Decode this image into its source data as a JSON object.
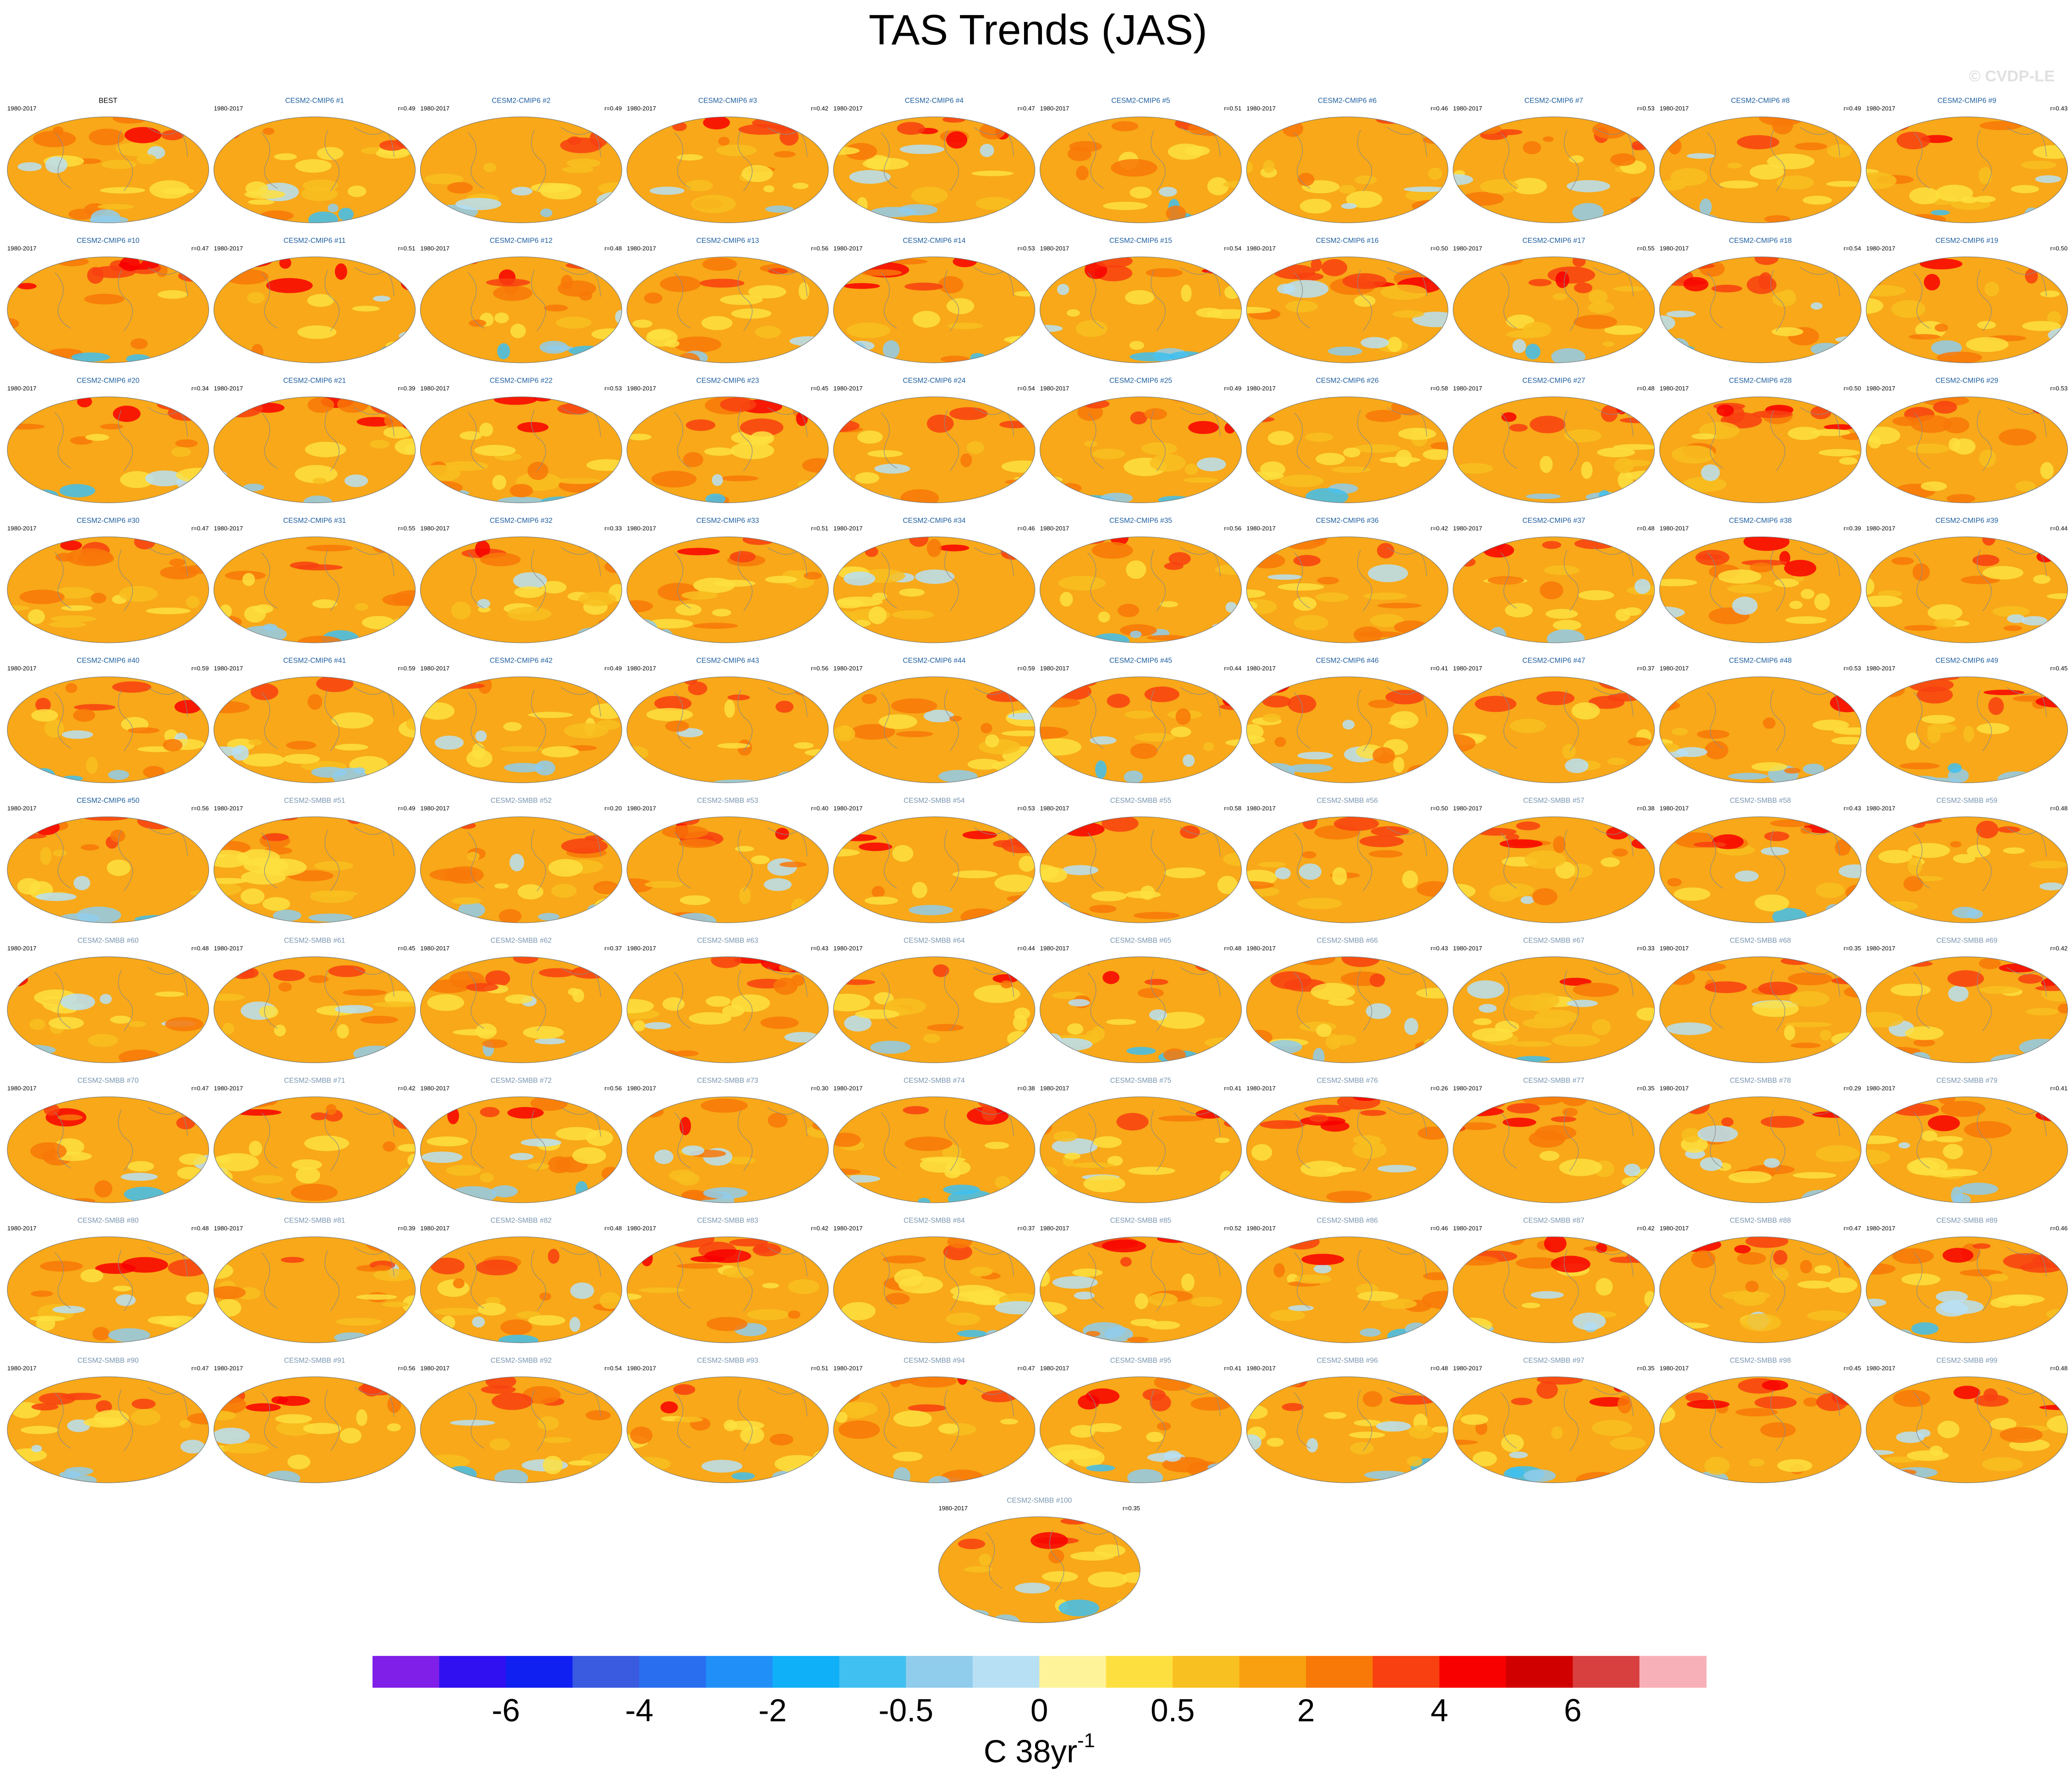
{
  "header": {
    "title": "TAS Trends (JAS)",
    "watermark": "© CVDP-LE"
  },
  "panels": [
    {
      "period": "1980-2017",
      "name": "BEST",
      "color": "#000000"
    },
    {
      "period": "1980-2017",
      "name": "CESM2-CMIP6 #1",
      "r": "r=0.49",
      "color": "#1f5fa0"
    },
    {
      "period": "1980-2017",
      "name": "CESM2-CMIP6 #2",
      "r": "r=0.49",
      "color": "#1f5fa0"
    },
    {
      "period": "1980-2017",
      "name": "CESM2-CMIP6 #3",
      "r": "r=0.42",
      "color": "#1f5fa0"
    },
    {
      "period": "1980-2017",
      "name": "CESM2-CMIP6 #4",
      "r": "r=0.47",
      "color": "#1f5fa0"
    },
    {
      "period": "1980-2017",
      "name": "CESM2-CMIP6 #5",
      "r": "r=0.51",
      "color": "#1f5fa0"
    },
    {
      "period": "1980-2017",
      "name": "CESM2-CMIP6 #6",
      "r": "r=0.46",
      "color": "#1f5fa0"
    },
    {
      "period": "1980-2017",
      "name": "CESM2-CMIP6 #7",
      "r": "r=0.53",
      "color": "#1f5fa0"
    },
    {
      "period": "1980-2017",
      "name": "CESM2-CMIP6 #8",
      "r": "r=0.49",
      "color": "#1f5fa0"
    },
    {
      "period": "1980-2017",
      "name": "CESM2-CMIP6 #9",
      "r": "r=0.43",
      "color": "#1f5fa0"
    },
    {
      "period": "1980-2017",
      "name": "CESM2-CMIP6 #10",
      "r": "r=0.47",
      "color": "#1f5fa0"
    },
    {
      "period": "1980-2017",
      "name": "CESM2-CMIP6 #11",
      "r": "r=0.51",
      "color": "#1f5fa0"
    },
    {
      "period": "1980-2017",
      "name": "CESM2-CMIP6 #12",
      "r": "r=0.48",
      "color": "#1f5fa0"
    },
    {
      "period": "1980-2017",
      "name": "CESM2-CMIP6 #13",
      "r": "r=0.56",
      "color": "#1f5fa0"
    },
    {
      "period": "1980-2017",
      "name": "CESM2-CMIP6 #14",
      "r": "r=0.53",
      "color": "#1f5fa0"
    },
    {
      "period": "1980-2017",
      "name": "CESM2-CMIP6 #15",
      "r": "r=0.54",
      "color": "#1f5fa0"
    },
    {
      "period": "1980-2017",
      "name": "CESM2-CMIP6 #16",
      "r": "r=0.50",
      "color": "#1f5fa0"
    },
    {
      "period": "1980-2017",
      "name": "CESM2-CMIP6 #17",
      "r": "r=0.55",
      "color": "#1f5fa0"
    },
    {
      "period": "1980-2017",
      "name": "CESM2-CMIP6 #18",
      "r": "r=0.54",
      "color": "#1f5fa0"
    },
    {
      "period": "1980-2017",
      "name": "CESM2-CMIP6 #19",
      "r": "r=0.50",
      "color": "#1f5fa0"
    },
    {
      "period": "1980-2017",
      "name": "CESM2-CMIP6 #20",
      "r": "r=0.34",
      "color": "#1f5fa0"
    },
    {
      "period": "1980-2017",
      "name": "CESM2-CMIP6 #21",
      "r": "r=0.39",
      "color": "#1f5fa0"
    },
    {
      "period": "1980-2017",
      "name": "CESM2-CMIP6 #22",
      "r": "r=0.53",
      "color": "#1f5fa0"
    },
    {
      "period": "1980-2017",
      "name": "CESM2-CMIP6 #23",
      "r": "r=0.45",
      "color": "#1f5fa0"
    },
    {
      "period": "1980-2017",
      "name": "CESM2-CMIP6 #24",
      "r": "r=0.54",
      "color": "#1f5fa0"
    },
    {
      "period": "1980-2017",
      "name": "CESM2-CMIP6 #25",
      "r": "r=0.49",
      "color": "#1f5fa0"
    },
    {
      "period": "1980-2017",
      "name": "CESM2-CMIP6 #26",
      "r": "r=0.58",
      "color": "#1f5fa0"
    },
    {
      "period": "1980-2017",
      "name": "CESM2-CMIP6 #27",
      "r": "r=0.48",
      "color": "#1f5fa0"
    },
    {
      "period": "1980-2017",
      "name": "CESM2-CMIP6 #28",
      "r": "r=0.50",
      "color": "#1f5fa0"
    },
    {
      "period": "1980-2017",
      "name": "CESM2-CMIP6 #29",
      "r": "r=0.53",
      "color": "#1f5fa0"
    },
    {
      "period": "1980-2017",
      "name": "CESM2-CMIP6 #30",
      "r": "r=0.47",
      "color": "#1f5fa0"
    },
    {
      "period": "1980-2017",
      "name": "CESM2-CMIP6 #31",
      "r": "r=0.55",
      "color": "#1f5fa0"
    },
    {
      "period": "1980-2017",
      "name": "CESM2-CMIP6 #32",
      "r": "r=0.33",
      "color": "#1f5fa0"
    },
    {
      "period": "1980-2017",
      "name": "CESM2-CMIP6 #33",
      "r": "r=0.51",
      "color": "#1f5fa0"
    },
    {
      "period": "1980-2017",
      "name": "CESM2-CMIP6 #34",
      "r": "r=0.46",
      "color": "#1f5fa0"
    },
    {
      "period": "1980-2017",
      "name": "CESM2-CMIP6 #35",
      "r": "r=0.56",
      "color": "#1f5fa0"
    },
    {
      "period": "1980-2017",
      "name": "CESM2-CMIP6 #36",
      "r": "r=0.42",
      "color": "#1f5fa0"
    },
    {
      "period": "1980-2017",
      "name": "CESM2-CMIP6 #37",
      "r": "r=0.48",
      "color": "#1f5fa0"
    },
    {
      "period": "1980-2017",
      "name": "CESM2-CMIP6 #38",
      "r": "r=0.39",
      "color": "#1f5fa0"
    },
    {
      "period": "1980-2017",
      "name": "CESM2-CMIP6 #39",
      "r": "r=0.44",
      "color": "#1f5fa0"
    },
    {
      "period": "1980-2017",
      "name": "CESM2-CMIP6 #40",
      "r": "r=0.59",
      "color": "#1f5fa0"
    },
    {
      "period": "1980-2017",
      "name": "CESM2-CMIP6 #41",
      "r": "r=0.59",
      "color": "#1f5fa0"
    },
    {
      "period": "1980-2017",
      "name": "CESM2-CMIP6 #42",
      "r": "r=0.49",
      "color": "#1f5fa0"
    },
    {
      "period": "1980-2017",
      "name": "CESM2-CMIP6 #43",
      "r": "r=0.56",
      "color": "#1f5fa0"
    },
    {
      "period": "1980-2017",
      "name": "CESM2-CMIP6 #44",
      "r": "r=0.59",
      "color": "#1f5fa0"
    },
    {
      "period": "1980-2017",
      "name": "CESM2-CMIP6 #45",
      "r": "r=0.44",
      "color": "#1f5fa0"
    },
    {
      "period": "1980-2017",
      "name": "CESM2-CMIP6 #46",
      "r": "r=0.41",
      "color": "#1f5fa0"
    },
    {
      "period": "1980-2017",
      "name": "CESM2-CMIP6 #47",
      "r": "r=0.37",
      "color": "#1f5fa0"
    },
    {
      "period": "1980-2017",
      "name": "CESM2-CMIP6 #48",
      "r": "r=0.53",
      "color": "#1f5fa0"
    },
    {
      "period": "1980-2017",
      "name": "CESM2-CMIP6 #49",
      "r": "r=0.45",
      "color": "#1f5fa0"
    },
    {
      "period": "1980-2017",
      "name": "CESM2-CMIP6 #50",
      "r": "r=0.56",
      "color": "#1f5fa0"
    },
    {
      "period": "1980-2017",
      "name": "CESM2-SMBB #51",
      "r": "r=0.49",
      "color": "#7a96b0"
    },
    {
      "period": "1980-2017",
      "name": "CESM2-SMBB #52",
      "r": "r=0.20",
      "color": "#7a96b0"
    },
    {
      "period": "1980-2017",
      "name": "CESM2-SMBB #53",
      "r": "r=0.40",
      "color": "#7a96b0"
    },
    {
      "period": "1980-2017",
      "name": "CESM2-SMBB #54",
      "r": "r=0.53",
      "color": "#7a96b0"
    },
    {
      "period": "1980-2017",
      "name": "CESM2-SMBB #55",
      "r": "r=0.58",
      "color": "#7a96b0"
    },
    {
      "period": "1980-2017",
      "name": "CESM2-SMBB #56",
      "r": "r=0.50",
      "color": "#7a96b0"
    },
    {
      "period": "1980-2017",
      "name": "CESM2-SMBB #57",
      "r": "r=0.38",
      "color": "#7a96b0"
    },
    {
      "period": "1980-2017",
      "name": "CESM2-SMBB #58",
      "r": "r=0.43",
      "color": "#7a96b0"
    },
    {
      "period": "1980-2017",
      "name": "CESM2-SMBB #59",
      "r": "r=0.48",
      "color": "#7a96b0"
    },
    {
      "period": "1980-2017",
      "name": "CESM2-SMBB #60",
      "r": "r=0.48",
      "color": "#7a96b0"
    },
    {
      "period": "1980-2017",
      "name": "CESM2-SMBB #61",
      "r": "r=0.45",
      "color": "#7a96b0"
    },
    {
      "period": "1980-2017",
      "name": "CESM2-SMBB #62",
      "r": "r=0.37",
      "color": "#7a96b0"
    },
    {
      "period": "1980-2017",
      "name": "CESM2-SMBB #63",
      "r": "r=0.43",
      "color": "#7a96b0"
    },
    {
      "period": "1980-2017",
      "name": "CESM2-SMBB #64",
      "r": "r=0.44",
      "color": "#7a96b0"
    },
    {
      "period": "1980-2017",
      "name": "CESM2-SMBB #65",
      "r": "r=0.48",
      "color": "#7a96b0"
    },
    {
      "period": "1980-2017",
      "name": "CESM2-SMBB #66",
      "r": "r=0.43",
      "color": "#7a96b0"
    },
    {
      "period": "1980-2017",
      "name": "CESM2-SMBB #67",
      "r": "r=0.33",
      "color": "#7a96b0"
    },
    {
      "period": "1980-2017",
      "name": "CESM2-SMBB #68",
      "r": "r=0.35",
      "color": "#7a96b0"
    },
    {
      "period": "1980-2017",
      "name": "CESM2-SMBB #69",
      "r": "r=0.42",
      "color": "#7a96b0"
    },
    {
      "period": "1980-2017",
      "name": "CESM2-SMBB #70",
      "r": "r=0.47",
      "color": "#7a96b0"
    },
    {
      "period": "1980-2017",
      "name": "CESM2-SMBB #71",
      "r": "r=0.42",
      "color": "#7a96b0"
    },
    {
      "period": "1980-2017",
      "name": "CESM2-SMBB #72",
      "r": "r=0.56",
      "color": "#7a96b0"
    },
    {
      "period": "1980-2017",
      "name": "CESM2-SMBB #73",
      "r": "r=0.30",
      "color": "#7a96b0"
    },
    {
      "period": "1980-2017",
      "name": "CESM2-SMBB #74",
      "r": "r=0.38",
      "color": "#7a96b0"
    },
    {
      "period": "1980-2017",
      "name": "CESM2-SMBB #75",
      "r": "r=0.41",
      "color": "#7a96b0"
    },
    {
      "period": "1980-2017",
      "name": "CESM2-SMBB #76",
      "r": "r=0.26",
      "color": "#7a96b0"
    },
    {
      "period": "1980-2017",
      "name": "CESM2-SMBB #77",
      "r": "r=0.35",
      "color": "#7a96b0"
    },
    {
      "period": "1980-2017",
      "name": "CESM2-SMBB #78",
      "r": "r=0.29",
      "color": "#7a96b0"
    },
    {
      "period": "1980-2017",
      "name": "CESM2-SMBB #79",
      "r": "r=0.41",
      "color": "#7a96b0"
    },
    {
      "period": "1980-2017",
      "name": "CESM2-SMBB #80",
      "r": "r=0.48",
      "color": "#7a96b0"
    },
    {
      "period": "1980-2017",
      "name": "CESM2-SMBB #81",
      "r": "r=0.39",
      "color": "#7a96b0"
    },
    {
      "period": "1980-2017",
      "name": "CESM2-SMBB #82",
      "r": "r=0.48",
      "color": "#7a96b0"
    },
    {
      "period": "1980-2017",
      "name": "CESM2-SMBB #83",
      "r": "r=0.42",
      "color": "#7a96b0"
    },
    {
      "period": "1980-2017",
      "name": "CESM2-SMBB #84",
      "r": "r=0.37",
      "color": "#7a96b0"
    },
    {
      "period": "1980-2017",
      "name": "CESM2-SMBB #85",
      "r": "r=0.52",
      "color": "#7a96b0"
    },
    {
      "period": "1980-2017",
      "name": "CESM2-SMBB #86",
      "r": "r=0.46",
      "color": "#7a96b0"
    },
    {
      "period": "1980-2017",
      "name": "CESM2-SMBB #87",
      "r": "r=0.42",
      "color": "#7a96b0"
    },
    {
      "period": "1980-2017",
      "name": "CESM2-SMBB #88",
      "r": "r=0.47",
      "color": "#7a96b0"
    },
    {
      "period": "1980-2017",
      "name": "CESM2-SMBB #89",
      "r": "r=0.46",
      "color": "#7a96b0"
    },
    {
      "period": "1980-2017",
      "name": "CESM2-SMBB #90",
      "r": "r=0.47",
      "color": "#7a96b0"
    },
    {
      "period": "1980-2017",
      "name": "CESM2-SMBB #91",
      "r": "r=0.56",
      "color": "#7a96b0"
    },
    {
      "period": "1980-2017",
      "name": "CESM2-SMBB #92",
      "r": "r=0.54",
      "color": "#7a96b0"
    },
    {
      "period": "1980-2017",
      "name": "CESM2-SMBB #93",
      "r": "r=0.51",
      "color": "#7a96b0"
    },
    {
      "period": "1980-2017",
      "name": "CESM2-SMBB #94",
      "r": "r=0.47",
      "color": "#7a96b0"
    },
    {
      "period": "1980-2017",
      "name": "CESM2-SMBB #95",
      "r": "r=0.41",
      "color": "#7a96b0"
    },
    {
      "period": "1980-2017",
      "name": "CESM2-SMBB #96",
      "r": "r=0.48",
      "color": "#7a96b0"
    },
    {
      "period": "1980-2017",
      "name": "CESM2-SMBB #97",
      "r": "r=0.35",
      "color": "#7a96b0"
    },
    {
      "period": "1980-2017",
      "name": "CESM2-SMBB #98",
      "r": "r=0.45",
      "color": "#7a96b0"
    },
    {
      "period": "1980-2017",
      "name": "CESM2-SMBB #99",
      "r": "r=0.48",
      "color": "#7a96b0"
    },
    {
      "period": "1980-2017",
      "name": "CESM2-SMBB #100",
      "r": "r=0.35",
      "color": "#7a96b0"
    }
  ],
  "colorbar": {
    "colors": [
      "#7f1fe8",
      "#3010f0",
      "#1020f0",
      "#3a5ae0",
      "#2a6ef0",
      "#2090f8",
      "#10b0f8",
      "#40c0f0",
      "#90ccec",
      "#b8e0f4",
      "#fff39a",
      "#fde040",
      "#f8c020",
      "#f8a010",
      "#f87808",
      "#f84010",
      "#f80000",
      "#d00000",
      "#d84040",
      "#f8b0b8"
    ],
    "labels": [
      "-6",
      "-4",
      "-2",
      "-0.5",
      "0",
      "0.5",
      "2",
      "4",
      "6"
    ],
    "unit": {
      "text": "C 38yr",
      "superscript": "-1"
    }
  }
}
